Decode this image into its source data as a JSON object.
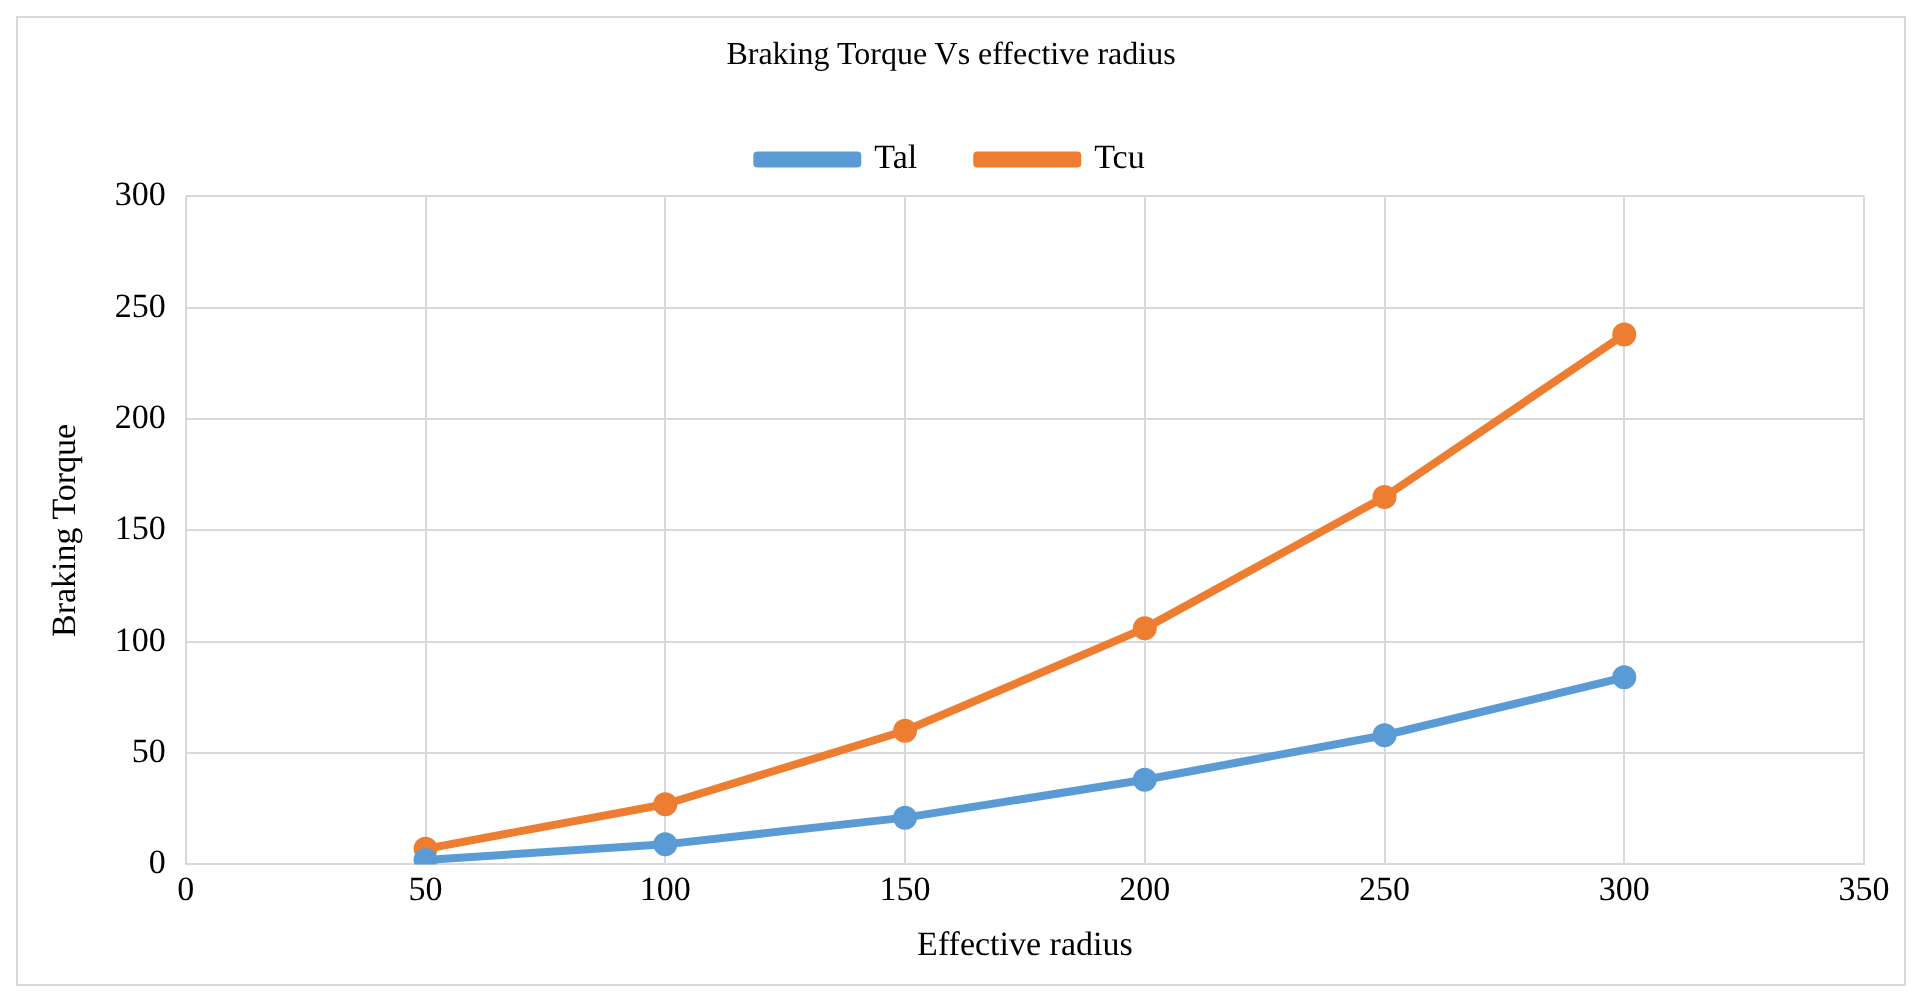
{
  "chart_data": {
    "type": "line",
    "title": "Braking Torque Vs effective radius",
    "xlabel": "Effective radius",
    "ylabel": "Braking Torque",
    "x": [
      50,
      100,
      150,
      200,
      250,
      300
    ],
    "series": [
      {
        "name": "Tal",
        "color": "#5b9bd5",
        "values": [
          2,
          9,
          21,
          38,
          58,
          84
        ]
      },
      {
        "name": "Tcu",
        "color": "#ed7d31",
        "values": [
          7,
          27,
          60,
          106,
          165,
          238
        ]
      }
    ],
    "xlim": [
      0,
      350
    ],
    "xticks": [
      0,
      50,
      100,
      150,
      200,
      250,
      300,
      350
    ],
    "ylim": [
      0,
      300
    ],
    "yticks": [
      0,
      50,
      100,
      150,
      200,
      250,
      300
    ],
    "grid": true,
    "legend": "top",
    "marker": "circle",
    "line_style": "solid"
  }
}
